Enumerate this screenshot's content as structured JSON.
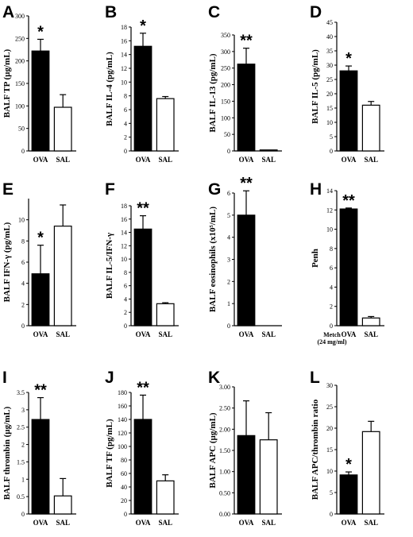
{
  "chart_data": [
    {
      "panel": "A",
      "type": "bar",
      "categories": [
        "OVA",
        "SAL"
      ],
      "values": [
        222,
        97
      ],
      "errors": [
        26,
        28
      ],
      "ylabel": "BALF TP (µg/mL)",
      "ylim": [
        0,
        300
      ],
      "ticks": [
        0,
        50,
        100,
        150,
        200,
        250,
        300
      ],
      "fills": [
        "#000000",
        "#ffffff"
      ],
      "annotations": [
        "*",
        ""
      ]
    },
    {
      "panel": "B",
      "type": "bar",
      "categories": [
        "OVA",
        "SAL"
      ],
      "values": [
        15.2,
        7.6
      ],
      "errors": [
        1.9,
        0.3
      ],
      "ylabel": "BALF IL-4 (pg/mL)",
      "ylim": [
        0,
        18
      ],
      "ticks": [
        0,
        2,
        4,
        6,
        8,
        10,
        12,
        14,
        16,
        18
      ],
      "fills": [
        "#000000",
        "#ffffff"
      ],
      "annotations": [
        "*",
        ""
      ]
    },
    {
      "panel": "C",
      "type": "bar",
      "categories": [
        "OVA",
        "SAL"
      ],
      "values": [
        262,
        3
      ],
      "errors": [
        48,
        0
      ],
      "ylabel": "BALF IL-13 (pg/mL)",
      "ylim": [
        0,
        350
      ],
      "ticks": [
        0,
        50,
        100,
        150,
        200,
        250,
        300,
        350
      ],
      "fills": [
        "#000000",
        "#ffffff"
      ],
      "annotations": [
        "**",
        ""
      ]
    },
    {
      "panel": "D",
      "type": "bar",
      "categories": [
        "OVA",
        "SAL"
      ],
      "values": [
        28,
        16
      ],
      "errors": [
        1.7,
        1.3
      ],
      "ylabel": "BALF IL-5 (pg/mL)",
      "ylim": [
        0,
        45
      ],
      "ticks": [
        0,
        5,
        10,
        15,
        20,
        25,
        30,
        35,
        40,
        45
      ],
      "fills": [
        "#000000",
        "#ffffff"
      ],
      "annotations": [
        "*",
        ""
      ]
    },
    {
      "panel": "E",
      "type": "bar",
      "categories": [
        "OVA",
        "SAL"
      ],
      "values": [
        4.9,
        9.4
      ],
      "errors": [
        2.7,
        2.0
      ],
      "ylabel": "BALF IFN-γ (pg/mL)",
      "ylim": [
        0,
        12
      ],
      "ticks": [
        0,
        2,
        4,
        6,
        8,
        10
      ],
      "fills": [
        "#000000",
        "#ffffff"
      ],
      "annotations": [
        "*",
        ""
      ]
    },
    {
      "panel": "F",
      "type": "bar",
      "categories": [
        "OVA",
        "SAL"
      ],
      "values": [
        14.5,
        3.3
      ],
      "errors": [
        2.0,
        0.15
      ],
      "ylabel": "BALF IL-5/IFN-γ",
      "ylim": [
        0,
        18
      ],
      "ticks": [
        0,
        2,
        4,
        6,
        8,
        10,
        12,
        14,
        16,
        18
      ],
      "fills": [
        "#000000",
        "#ffffff"
      ],
      "annotations": [
        "**",
        ""
      ]
    },
    {
      "panel": "G",
      "type": "bar",
      "categories": [
        "OVA",
        "SAL"
      ],
      "values": [
        5.0,
        0
      ],
      "errors": [
        1.1,
        0
      ],
      "ylabel": "BALF eosinophils (x10⁵/mL)",
      "ylim": [
        0,
        6
      ],
      "ticks": [
        0,
        1,
        2,
        3,
        4,
        5,
        6
      ],
      "fills": [
        "#000000",
        "#ffffff"
      ],
      "annotations": [
        "**",
        ""
      ]
    },
    {
      "panel": "H",
      "type": "bar",
      "categories": [
        "OVA",
        "SAL"
      ],
      "values": [
        12.1,
        0.8
      ],
      "errors": [
        0.1,
        0.15
      ],
      "ylabel": "Penh",
      "ylim": [
        0,
        14
      ],
      "ticks": [
        0,
        2,
        4,
        6,
        8,
        10,
        12,
        14
      ],
      "fills": [
        "#000000",
        "#ffffff"
      ],
      "annotations": [
        "**",
        ""
      ],
      "note": [
        "Metch",
        "(24 mg/ml)"
      ]
    },
    {
      "panel": "I",
      "type": "bar",
      "categories": [
        "OVA",
        "SAL"
      ],
      "values": [
        2.72,
        0.52
      ],
      "errors": [
        0.63,
        0.5
      ],
      "ylabel": "BALF thrombin (µg/mL)",
      "ylim": [
        0,
        3.5
      ],
      "ticks": [
        0,
        0.5,
        1.0,
        1.5,
        2.0,
        2.5,
        3.0,
        3.5
      ],
      "fills": [
        "#000000",
        "#ffffff"
      ],
      "annotations": [
        "**",
        ""
      ]
    },
    {
      "panel": "J",
      "type": "bar",
      "categories": [
        "OVA",
        "SAL"
      ],
      "values": [
        140,
        49
      ],
      "errors": [
        36,
        9
      ],
      "ylabel": "BALF TF (pg/mL)",
      "ylim": [
        0,
        180
      ],
      "ticks": [
        0,
        20,
        40,
        60,
        80,
        100,
        120,
        140,
        160,
        180
      ],
      "fills": [
        "#000000",
        "#ffffff"
      ],
      "annotations": [
        "**",
        ""
      ]
    },
    {
      "panel": "K",
      "type": "bar",
      "categories": [
        "OVA",
        "SAL"
      ],
      "values": [
        1.85,
        1.75
      ],
      "errors": [
        0.82,
        0.64
      ],
      "ylabel": "BALF APC (µg/mL)",
      "ylim": [
        0,
        3.0
      ],
      "ticks": [
        0,
        0.5,
        1.0,
        1.5,
        2.0,
        2.5,
        3.0
      ],
      "tickDecimals": 2,
      "fills": [
        "#000000",
        "#ffffff"
      ],
      "annotations": [
        "",
        ""
      ]
    },
    {
      "panel": "L",
      "type": "bar",
      "categories": [
        "OVA",
        "SAL"
      ],
      "values": [
        9.1,
        19.2
      ],
      "errors": [
        0.7,
        2.4
      ],
      "ylabel": "BALF APC/thrombin ratio",
      "ylim": [
        0,
        30
      ],
      "ticks": [
        0,
        5,
        10,
        15,
        20,
        25,
        30
      ],
      "fills": [
        "#000000",
        "#ffffff"
      ],
      "annotations": [
        "*",
        ""
      ]
    }
  ]
}
